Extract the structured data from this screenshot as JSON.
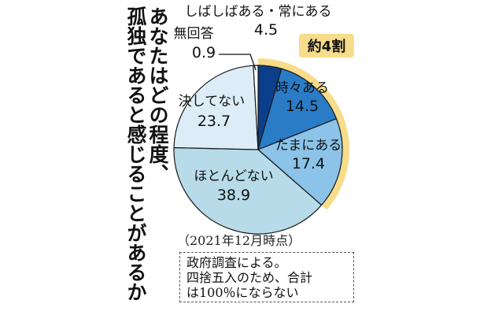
{
  "question": {
    "lines": [
      "あなたはどの程度、",
      "孤独であると感じることがあるか"
    ]
  },
  "chart_data": {
    "type": "pie",
    "title": "あなたはどの程度、孤独であると感じることがあるか",
    "unit": "%",
    "slices": [
      {
        "label": "しばしばある・常にある",
        "value": 4.5,
        "display": "4.5",
        "color": "#0b3f8c"
      },
      {
        "label": "時々ある",
        "value": 14.5,
        "display": "14.5",
        "color": "#2a7cc7"
      },
      {
        "label": "たまにある",
        "value": 17.4,
        "display": "17.4",
        "color": "#8cc3e8"
      },
      {
        "label": "ほとんどない",
        "value": 38.9,
        "display": "38.9",
        "color": "#b7dbe8"
      },
      {
        "label": "決してない",
        "value": 23.7,
        "display": "23.7",
        "color": "#dcedf8"
      },
      {
        "label": "無回答",
        "value": 0.9,
        "display": "0.9",
        "color": "#ffffff"
      }
    ],
    "highlight": {
      "label": "約4割",
      "slices": [
        "しばしばある・常にある",
        "時々ある",
        "たまにある"
      ],
      "color": "#f7dc8a"
    }
  },
  "date_note": "（2021年12月時点）",
  "footnote": {
    "lines": [
      "政府調査による。",
      "四捨五入のため、合計",
      "は100％にならない"
    ]
  }
}
